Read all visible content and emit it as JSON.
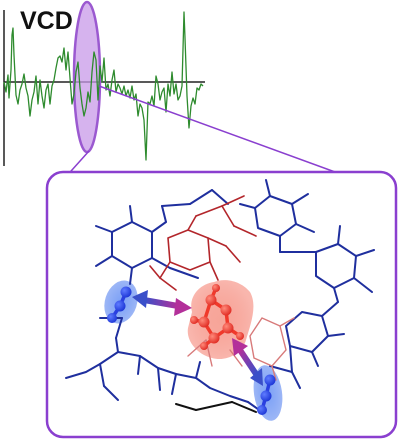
{
  "title": "VCD",
  "colors": {
    "spectrum": "#2e8b2e",
    "axis": "#222222",
    "highlight": "#9b59d0",
    "callout_border": "#8a3fcf",
    "molecule_blue": "#1f2f9e",
    "molecule_red": "#b3262b",
    "molecule_black": "#111111",
    "red_glow": "#f25a4a",
    "blue_glow": "#4d7ef0",
    "arrow_start": "#3a4fc9",
    "arrow_end": "#b3309a"
  }
}
